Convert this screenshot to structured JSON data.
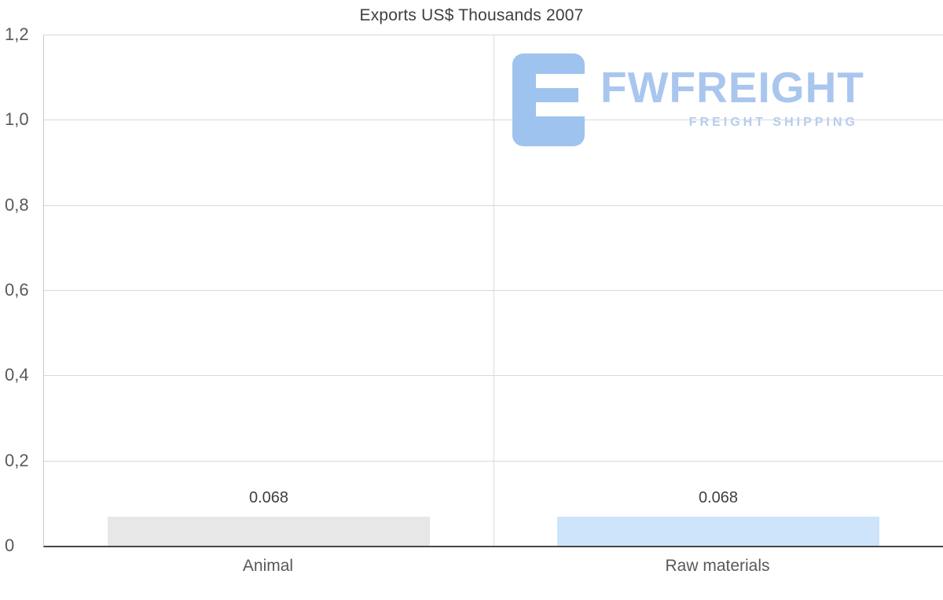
{
  "title": "Exports US$ Thousands 2007",
  "logo": {
    "text": "FWFREIGHT",
    "subtitle": "FREIGHT SHIPPING",
    "text_color": "#a9c6ee",
    "icon_color": "#9fc3ef"
  },
  "chart_data": {
    "type": "bar",
    "title": "Exports US$ Thousands 2007",
    "categories": [
      "Animal",
      "Raw materials"
    ],
    "values": [
      0.068,
      0.068
    ],
    "value_labels": [
      "0.068",
      "0.068"
    ],
    "bar_colors": [
      "#e7e7e7",
      "#cde4fa"
    ],
    "xlabel": "",
    "ylabel": "",
    "ylim": [
      0,
      1.2
    ],
    "yticks": [
      {
        "value": 0,
        "label": "0"
      },
      {
        "value": 0.2,
        "label": "0,2"
      },
      {
        "value": 0.4,
        "label": "0,4"
      },
      {
        "value": 0.6,
        "label": "0,6"
      },
      {
        "value": 0.8,
        "label": "0,8"
      },
      {
        "value": 1.0,
        "label": "1,0"
      },
      {
        "value": 1.2,
        "label": "1,2"
      }
    ],
    "grid": "horizontal",
    "legend": "none",
    "decimal_separator_axis": ","
  }
}
